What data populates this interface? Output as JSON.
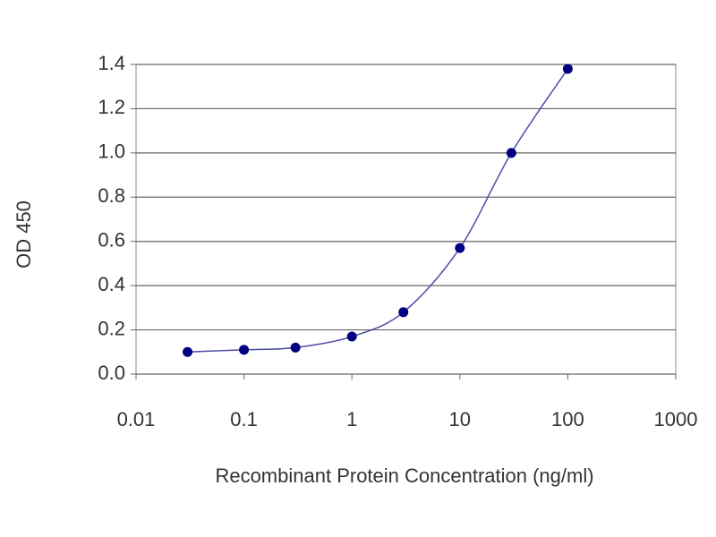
{
  "chart_data": {
    "type": "line",
    "x_label": "Recombinant Protein Concentration  (ng/ml)",
    "y_label": "OD 450",
    "x_scale": "log",
    "x": [
      0.03,
      0.1,
      0.3,
      1,
      3,
      10,
      30,
      100
    ],
    "series": [
      {
        "color": "#000080",
        "line_color": "#4d4da6",
        "values": [
          0.1,
          0.11,
          0.12,
          0.17,
          0.28,
          0.57,
          1.0,
          1.38
        ]
      }
    ],
    "xlim": [
      0.01,
      1000
    ],
    "xticks": [
      0.01,
      0.1,
      1,
      10,
      100,
      1000
    ],
    "ylim": [
      0,
      1.4
    ],
    "yticks": [
      {
        "value": 0,
        "label": "0.0"
      },
      0.2,
      0.4,
      0.6,
      0.8,
      {
        "value": 1,
        "label": "1.0"
      },
      1.2,
      1.4
    ],
    "grid": true
  }
}
